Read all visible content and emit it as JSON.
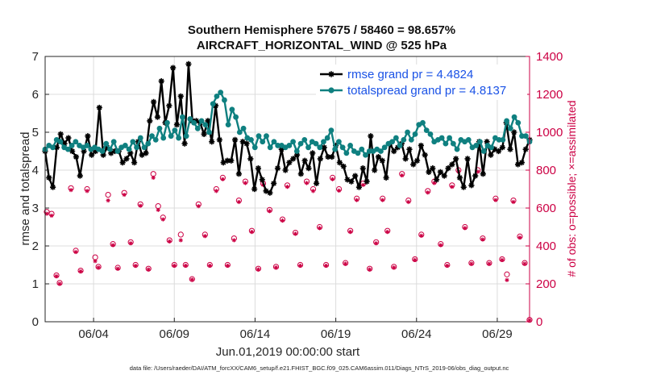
{
  "chart_data": {
    "type": "line",
    "title": "Southern Hemisphere 57675 / 58460 = 98.657%",
    "subtitle": "AIRCRAFT_HORIZONTAL_WIND @ 525 hPa",
    "xlabel": "Jun.01,2019 00:00:00 start",
    "ylabel": "rmse and totalspread",
    "ylabel_right": "# of obs: o=possible; ×=assimilated",
    "x_ticks": [
      "06/04",
      "06/09",
      "06/14",
      "06/19",
      "06/24",
      "06/29"
    ],
    "x_tick_days": [
      4,
      9,
      14,
      19,
      24,
      29
    ],
    "xlim_days": [
      1,
      31
    ],
    "ylim": [
      0,
      7
    ],
    "y_ticks": [
      "0",
      "1",
      "2",
      "3",
      "4",
      "5",
      "6",
      "7"
    ],
    "ylim_right": [
      0,
      1400
    ],
    "y_ticks_right": [
      "0",
      "200",
      "400",
      "600",
      "800",
      "1000",
      "1200",
      "1400"
    ],
    "grid": true,
    "legend_position": "top-right",
    "footer": "data file: /Users/raeder/DAI/ATM_forcXX/CAM6_setup/f.e21.FHIST_BGC.f09_025.CAM6assim.011/Diags_NTrS_2019-06/obs_diag_output.nc",
    "series": [
      {
        "name": "rmse grand pr = 4.4824",
        "color": "#000000",
        "marker": "star",
        "values": [
          4.5,
          3.8,
          3.55,
          4.6,
          4.95,
          4.7,
          4.85,
          4.5,
          4.35,
          3.85,
          4.5,
          4.9,
          4.4,
          4.5,
          5.65,
          4.4,
          4.6,
          4.45,
          4.5,
          4.5,
          4.2,
          4.3,
          4.45,
          4.2,
          4.75,
          4.4,
          4.45,
          5.3,
          5.8,
          5.4,
          6.35,
          5.25,
          5.7,
          6.7,
          5.2,
          5.95,
          4.7,
          6.8,
          5.3,
          5.3,
          5.25,
          4.95,
          5.3,
          4.75,
          5.7,
          4.8,
          4.2,
          4.25,
          4.25,
          4.8,
          3.9,
          4.75,
          4.7,
          4.3,
          3.5,
          4.05,
          3.75,
          3.45,
          3.4,
          3.65,
          4.05,
          4.55,
          4.0,
          4.2,
          4.3,
          4.4,
          3.9,
          4.25,
          4.05,
          4.45,
          3.65,
          4.3,
          4.6,
          4.35,
          4.35,
          4.65,
          4.2,
          4.1,
          3.75,
          3.7,
          3.85,
          3.55,
          4.05,
          3.7,
          4.9,
          4.0,
          4.35,
          4.25,
          3.8,
          4.7,
          4.5,
          4.6,
          4.7,
          4.3,
          4.55,
          4.15,
          4.25,
          4.65,
          4.4,
          3.95,
          4.05,
          3.75,
          3.95,
          3.85,
          4.05,
          4.15,
          4.3,
          3.8,
          3.55,
          4.3,
          3.6,
          3.85,
          4.75,
          3.9,
          4.75,
          4.4,
          4.55,
          4.5,
          4.6,
          5.25,
          4.55,
          5.0,
          4.15,
          4.2,
          4.55,
          4.8
        ]
      },
      {
        "name": "totalspread grand pr = 4.8137",
        "color": "#0f8080",
        "marker": "circle",
        "values": [
          4.55,
          4.65,
          4.6,
          4.8,
          4.75,
          4.6,
          4.55,
          4.65,
          4.75,
          4.65,
          4.6,
          4.65,
          4.55,
          4.6,
          4.55,
          4.5,
          4.7,
          4.55,
          4.75,
          4.5,
          4.6,
          4.65,
          4.55,
          4.75,
          4.6,
          4.85,
          4.6,
          4.7,
          4.9,
          4.8,
          5.1,
          4.85,
          5.25,
          4.9,
          5.05,
          4.85,
          5.4,
          4.9,
          5.35,
          5.25,
          5.1,
          5.3,
          5.2,
          5.0,
          5.75,
          5.95,
          6.05,
          5.85,
          5.2,
          5.6,
          5.4,
          5.0,
          5.1,
          4.85,
          4.8,
          4.6,
          4.9,
          4.75,
          4.9,
          4.6,
          4.75,
          4.65,
          4.65,
          4.6,
          4.65,
          4.75,
          4.5,
          4.7,
          4.8,
          4.6,
          4.75,
          4.7,
          4.6,
          4.75,
          4.85,
          5.05,
          4.55,
          4.75,
          4.6,
          4.45,
          4.65,
          4.5,
          4.45,
          4.55,
          4.4,
          4.5,
          4.5,
          4.55,
          4.5,
          4.6,
          4.7,
          4.75,
          4.85,
          4.65,
          4.8,
          5.0,
          4.8,
          4.95,
          5.2,
          5.25,
          5.05,
          4.95,
          4.75,
          4.8,
          4.85,
          4.7,
          4.85,
          4.7,
          4.55,
          4.8,
          4.75,
          4.8,
          4.6,
          4.65,
          4.75,
          4.5,
          4.65,
          4.6,
          4.85,
          4.8,
          4.8,
          5.3,
          5.1,
          5.4,
          5.25,
          4.9,
          4.9,
          4.75
        ]
      }
    ],
    "obs_possible": [
      {
        "day": 1.1,
        "n": 580
      },
      {
        "day": 1.4,
        "n": 570
      },
      {
        "day": 1.7,
        "n": 245
      },
      {
        "day": 1.9,
        "n": 205
      },
      {
        "day": 2.6,
        "n": 705
      },
      {
        "day": 2.9,
        "n": 375
      },
      {
        "day": 3.2,
        "n": 270
      },
      {
        "day": 3.6,
        "n": 700
      },
      {
        "day": 4.1,
        "n": 340
      },
      {
        "day": 4.3,
        "n": 290
      },
      {
        "day": 4.9,
        "n": 670
      },
      {
        "day": 5.2,
        "n": 410
      },
      {
        "day": 5.5,
        "n": 285
      },
      {
        "day": 5.9,
        "n": 680
      },
      {
        "day": 6.3,
        "n": 420
      },
      {
        "day": 6.6,
        "n": 300
      },
      {
        "day": 6.9,
        "n": 620
      },
      {
        "day": 7.4,
        "n": 280
      },
      {
        "day": 7.7,
        "n": 780
      },
      {
        "day": 8.0,
        "n": 610
      },
      {
        "day": 8.3,
        "n": 550
      },
      {
        "day": 8.7,
        "n": 430
      },
      {
        "day": 9.0,
        "n": 300
      },
      {
        "day": 9.4,
        "n": 460
      },
      {
        "day": 9.7,
        "n": 300
      },
      {
        "day": 10.1,
        "n": 225
      },
      {
        "day": 10.5,
        "n": 620
      },
      {
        "day": 10.9,
        "n": 460
      },
      {
        "day": 11.2,
        "n": 300
      },
      {
        "day": 11.6,
        "n": 700
      },
      {
        "day": 12.0,
        "n": 760
      },
      {
        "day": 12.3,
        "n": 300
      },
      {
        "day": 12.7,
        "n": 440
      },
      {
        "day": 13.0,
        "n": 640
      },
      {
        "day": 13.4,
        "n": 740
      },
      {
        "day": 13.8,
        "n": 480
      },
      {
        "day": 14.2,
        "n": 280
      },
      {
        "day": 14.5,
        "n": 730
      },
      {
        "day": 14.9,
        "n": 590
      },
      {
        "day": 15.3,
        "n": 290
      },
      {
        "day": 15.7,
        "n": 540
      },
      {
        "day": 16.0,
        "n": 720
      },
      {
        "day": 16.5,
        "n": 470
      },
      {
        "day": 16.8,
        "n": 300
      },
      {
        "day": 17.2,
        "n": 740
      },
      {
        "day": 17.6,
        "n": 700
      },
      {
        "day": 18.0,
        "n": 500
      },
      {
        "day": 18.4,
        "n": 300
      },
      {
        "day": 18.8,
        "n": 760
      },
      {
        "day": 19.2,
        "n": 700
      },
      {
        "day": 19.6,
        "n": 310
      },
      {
        "day": 19.9,
        "n": 480
      },
      {
        "day": 20.3,
        "n": 650
      },
      {
        "day": 20.7,
        "n": 730
      },
      {
        "day": 21.1,
        "n": 280
      },
      {
        "day": 21.5,
        "n": 420
      },
      {
        "day": 21.9,
        "n": 650
      },
      {
        "day": 22.2,
        "n": 480
      },
      {
        "day": 22.6,
        "n": 290
      },
      {
        "day": 23.1,
        "n": 780
      },
      {
        "day": 23.5,
        "n": 640
      },
      {
        "day": 23.9,
        "n": 330
      },
      {
        "day": 24.3,
        "n": 460
      },
      {
        "day": 24.7,
        "n": 690
      },
      {
        "day": 25.1,
        "n": 740
      },
      {
        "day": 25.5,
        "n": 410
      },
      {
        "day": 25.9,
        "n": 300
      },
      {
        "day": 26.2,
        "n": 720
      },
      {
        "day": 26.6,
        "n": 800
      },
      {
        "day": 27.0,
        "n": 500
      },
      {
        "day": 27.4,
        "n": 310
      },
      {
        "day": 27.8,
        "n": 800
      },
      {
        "day": 28.1,
        "n": 440
      },
      {
        "day": 28.5,
        "n": 310
      },
      {
        "day": 28.9,
        "n": 650
      },
      {
        "day": 29.3,
        "n": 330
      },
      {
        "day": 29.6,
        "n": 250
      },
      {
        "day": 30.0,
        "n": 640
      },
      {
        "day": 30.4,
        "n": 450
      },
      {
        "day": 30.7,
        "n": 310
      },
      {
        "day": 31.0,
        "n": 10
      }
    ],
    "obs_assimilated": [
      {
        "day": 1.1,
        "n": 570
      },
      {
        "day": 1.4,
        "n": 560
      },
      {
        "day": 1.7,
        "n": 240
      },
      {
        "day": 1.9,
        "n": 200
      },
      {
        "day": 2.6,
        "n": 695
      },
      {
        "day": 2.9,
        "n": 368
      },
      {
        "day": 3.2,
        "n": 266
      },
      {
        "day": 3.6,
        "n": 690
      },
      {
        "day": 4.1,
        "n": 320
      },
      {
        "day": 4.3,
        "n": 286
      },
      {
        "day": 4.9,
        "n": 640
      },
      {
        "day": 5.2,
        "n": 404
      },
      {
        "day": 5.5,
        "n": 280
      },
      {
        "day": 5.9,
        "n": 670
      },
      {
        "day": 6.3,
        "n": 414
      },
      {
        "day": 6.6,
        "n": 295
      },
      {
        "day": 6.9,
        "n": 612
      },
      {
        "day": 7.4,
        "n": 276
      },
      {
        "day": 7.7,
        "n": 760
      },
      {
        "day": 8.0,
        "n": 590
      },
      {
        "day": 8.3,
        "n": 540
      },
      {
        "day": 8.7,
        "n": 424
      },
      {
        "day": 9.0,
        "n": 296
      },
      {
        "day": 9.4,
        "n": 430
      },
      {
        "day": 9.7,
        "n": 296
      },
      {
        "day": 10.1,
        "n": 222
      },
      {
        "day": 10.5,
        "n": 610
      },
      {
        "day": 10.9,
        "n": 452
      },
      {
        "day": 11.2,
        "n": 296
      },
      {
        "day": 11.6,
        "n": 690
      },
      {
        "day": 12.0,
        "n": 752
      },
      {
        "day": 12.3,
        "n": 296
      },
      {
        "day": 12.7,
        "n": 430
      },
      {
        "day": 13.0,
        "n": 632
      },
      {
        "day": 13.4,
        "n": 732
      },
      {
        "day": 13.8,
        "n": 474
      },
      {
        "day": 14.2,
        "n": 276
      },
      {
        "day": 14.5,
        "n": 722
      },
      {
        "day": 14.9,
        "n": 584
      },
      {
        "day": 15.3,
        "n": 286
      },
      {
        "day": 15.7,
        "n": 534
      },
      {
        "day": 16.0,
        "n": 712
      },
      {
        "day": 16.5,
        "n": 464
      },
      {
        "day": 16.8,
        "n": 296
      },
      {
        "day": 17.2,
        "n": 732
      },
      {
        "day": 17.6,
        "n": 690
      },
      {
        "day": 18.0,
        "n": 494
      },
      {
        "day": 18.4,
        "n": 296
      },
      {
        "day": 18.8,
        "n": 752
      },
      {
        "day": 19.2,
        "n": 692
      },
      {
        "day": 19.6,
        "n": 306
      },
      {
        "day": 19.9,
        "n": 474
      },
      {
        "day": 20.3,
        "n": 642
      },
      {
        "day": 20.7,
        "n": 722
      },
      {
        "day": 21.1,
        "n": 276
      },
      {
        "day": 21.5,
        "n": 414
      },
      {
        "day": 21.9,
        "n": 642
      },
      {
        "day": 22.2,
        "n": 474
      },
      {
        "day": 22.6,
        "n": 286
      },
      {
        "day": 23.1,
        "n": 772
      },
      {
        "day": 23.5,
        "n": 632
      },
      {
        "day": 23.9,
        "n": 326
      },
      {
        "day": 24.3,
        "n": 454
      },
      {
        "day": 24.7,
        "n": 682
      },
      {
        "day": 25.1,
        "n": 732
      },
      {
        "day": 25.5,
        "n": 404
      },
      {
        "day": 25.9,
        "n": 296
      },
      {
        "day": 26.2,
        "n": 712
      },
      {
        "day": 26.6,
        "n": 792
      },
      {
        "day": 27.0,
        "n": 494
      },
      {
        "day": 27.4,
        "n": 306
      },
      {
        "day": 27.8,
        "n": 792
      },
      {
        "day": 28.1,
        "n": 434
      },
      {
        "day": 28.5,
        "n": 306
      },
      {
        "day": 28.9,
        "n": 642
      },
      {
        "day": 29.3,
        "n": 326
      },
      {
        "day": 29.6,
        "n": 220
      },
      {
        "day": 30.0,
        "n": 632
      },
      {
        "day": 30.4,
        "n": 444
      },
      {
        "day": 30.7,
        "n": 306
      },
      {
        "day": 31.0,
        "n": 8
      }
    ],
    "colors": {
      "obs": "#cc0044",
      "grid": "#dcdcdc",
      "axis": "#262626",
      "legend_text": "#1a52e6"
    }
  }
}
